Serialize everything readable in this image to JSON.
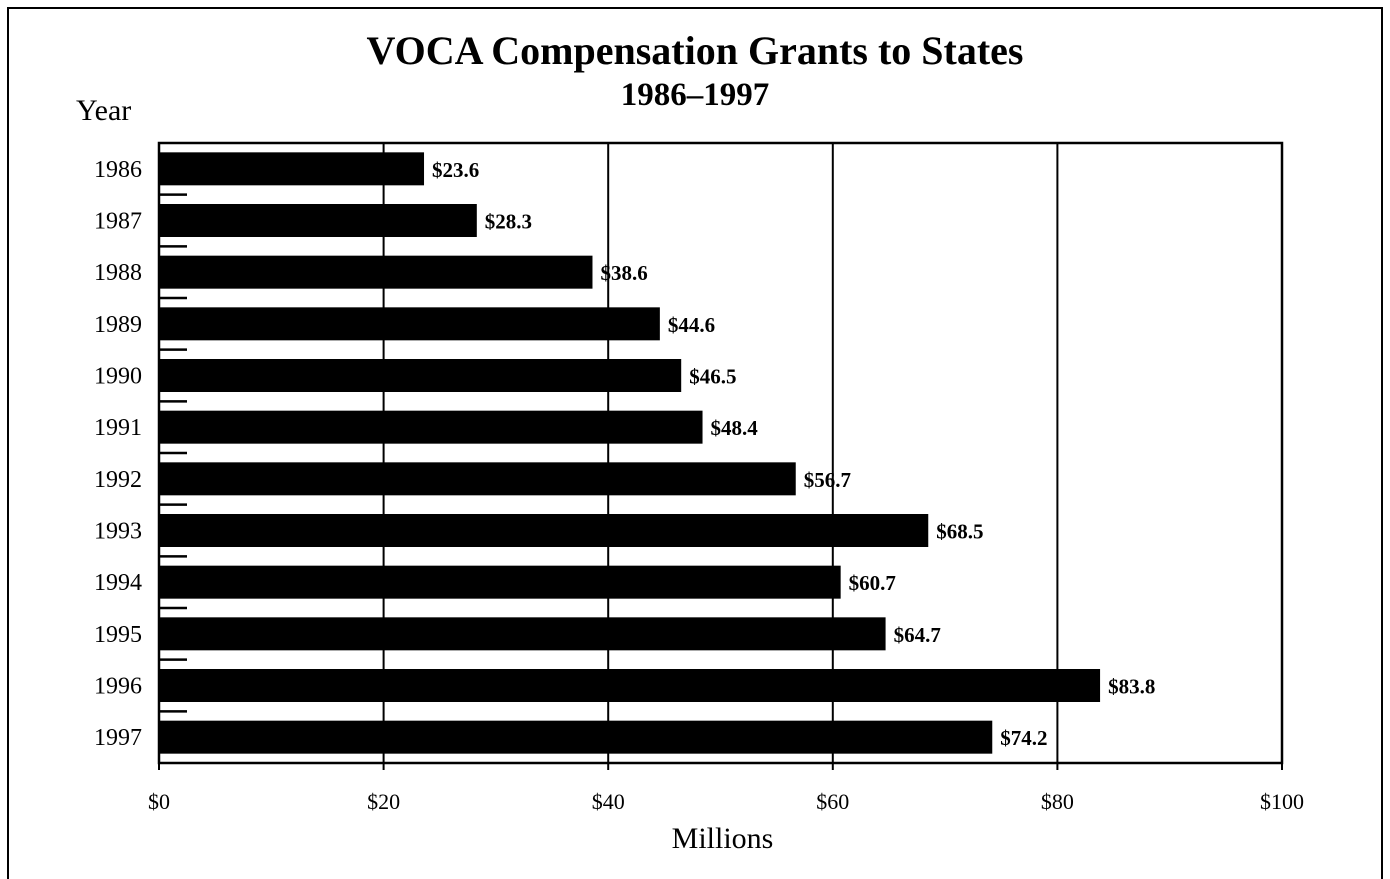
{
  "chart_data": {
    "type": "bar",
    "orientation": "horizontal",
    "title": "VOCA Compensation Grants to States",
    "subtitle": "1986–1997",
    "ylabel": "Year",
    "xlabel": "Millions",
    "categories": [
      "1986",
      "1987",
      "1988",
      "1989",
      "1990",
      "1991",
      "1992",
      "1993",
      "1994",
      "1995",
      "1996",
      "1997"
    ],
    "values": [
      23.6,
      28.3,
      38.6,
      44.6,
      46.5,
      48.4,
      56.7,
      68.5,
      60.7,
      64.7,
      83.8,
      74.2
    ],
    "data_labels": [
      "$23.6",
      "$28.3",
      "$38.6",
      "$44.6",
      "$46.5",
      "$48.4",
      "$56.7",
      "$68.5",
      "$60.7",
      "$64.7",
      "$83.8",
      "$74.2"
    ],
    "xlim": [
      0,
      100
    ],
    "x_ticks": [
      0,
      20,
      40,
      60,
      80,
      100
    ],
    "x_tick_labels": [
      "$0",
      "$20",
      "$40",
      "$60",
      "$80",
      "$100"
    ],
    "grid": "vertical",
    "legend": "none",
    "bar_color": "#000000"
  }
}
